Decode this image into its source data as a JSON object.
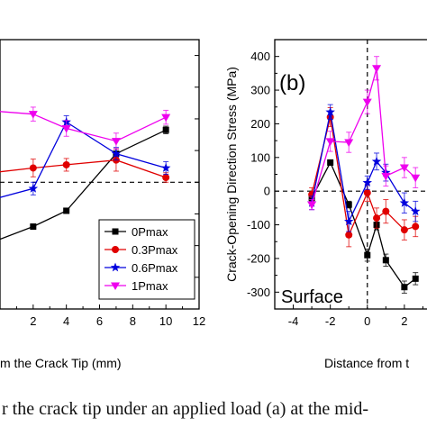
{
  "caption": "r the crack tip under an applied load (a) at the mid-",
  "chart_data": [
    {
      "type": "line",
      "panel": "a",
      "xlabel": "m the Crack Tip (mm)",
      "ylabel": "",
      "xlim": [
        0,
        12
      ],
      "ylim": [
        -400,
        450
      ],
      "x_ticks": [
        "2",
        "4",
        "6",
        "8",
        "10",
        "12"
      ],
      "zero_line": "dashed",
      "legend_position": "bottom-right",
      "series": [
        {
          "name": "0Pmax",
          "color": "#000000",
          "marker": "square",
          "x": [
            -0.5,
            2,
            4,
            7,
            10
          ],
          "y": [
            -190,
            -140,
            -90,
            90,
            165
          ],
          "err": [
            0,
            8,
            8,
            15,
            12
          ]
        },
        {
          "name": "0.3Pmax",
          "color": "#e00000",
          "marker": "circle",
          "x": [
            -0.5,
            2,
            4,
            7,
            10
          ],
          "y": [
            30,
            45,
            55,
            70,
            15
          ],
          "err": [
            0,
            28,
            20,
            35,
            15
          ]
        },
        {
          "name": "0.6Pmax",
          "color": "#0000dd",
          "marker": "star",
          "x": [
            -0.5,
            2,
            4,
            7,
            10
          ],
          "y": [
            -55,
            -20,
            190,
            90,
            45
          ],
          "err": [
            0,
            20,
            20,
            20,
            20
          ]
        },
        {
          "name": "1Pmax",
          "color": "#ee00ee",
          "marker": "triangle-down",
          "x": [
            -0.5,
            2,
            4,
            7,
            10
          ],
          "y": [
            225,
            215,
            170,
            130,
            205
          ],
          "err": [
            0,
            22,
            25,
            25,
            22
          ]
        }
      ]
    },
    {
      "type": "line",
      "panel": "b",
      "panel_label": "(b)",
      "annotation": "Surface",
      "xlabel": "Distance from t",
      "ylabel": "Crack-Opening Direction Stress (MPa)",
      "xlim": [
        -5,
        4
      ],
      "ylim": [
        -350,
        450
      ],
      "x_ticks": [
        "-4",
        "-2",
        "0",
        "2"
      ],
      "y_ticks": [
        "400",
        "300",
        "200",
        "100",
        "0",
        "-100",
        "-200",
        "-300"
      ],
      "zero_line": "dashed",
      "series": [
        {
          "name": "0Pmax",
          "color": "#000000",
          "marker": "square",
          "x": [
            -3,
            -2,
            -1,
            0,
            0.5,
            1,
            2,
            2.6
          ],
          "y": [
            -20,
            85,
            -40,
            -190,
            -100,
            -205,
            -285,
            -260
          ],
          "err": [
            12,
            8,
            10,
            18,
            15,
            18,
            18,
            18
          ]
        },
        {
          "name": "0.3Pmax",
          "color": "#e00000",
          "marker": "circle",
          "x": [
            -3,
            -2,
            -1,
            0,
            0.5,
            1,
            2,
            2.6
          ],
          "y": [
            -10,
            220,
            -130,
            -5,
            -80,
            -60,
            -115,
            -105
          ],
          "err": [
            20,
            28,
            35,
            25,
            30,
            35,
            30,
            30
          ]
        },
        {
          "name": "0.6Pmax",
          "color": "#0000dd",
          "marker": "star",
          "x": [
            -3,
            -2,
            -1,
            0,
            0.5,
            1,
            2,
            2.6
          ],
          "y": [
            -35,
            235,
            -90,
            25,
            88,
            55,
            -35,
            -60
          ],
          "err": [
            20,
            22,
            30,
            20,
            25,
            25,
            30,
            30
          ]
        },
        {
          "name": "1Pmax",
          "color": "#ee00ee",
          "marker": "triangle-down",
          "x": [
            -3,
            -2,
            -1,
            0,
            0.5,
            1,
            2,
            2.6
          ],
          "y": [
            -40,
            148,
            145,
            265,
            365,
            45,
            70,
            40
          ],
          "err": [
            15,
            30,
            30,
            35,
            35,
            30,
            30,
            30
          ]
        }
      ]
    }
  ]
}
